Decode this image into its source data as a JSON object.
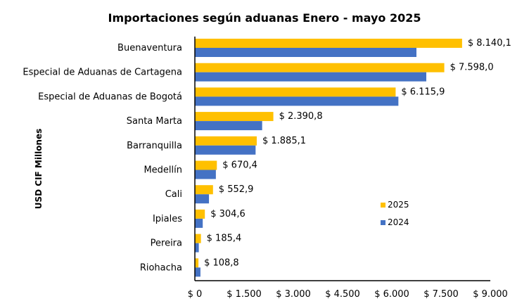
{
  "chart_data": {
    "type": "bar",
    "orientation": "horizontal",
    "title": "Importaciones según aduanas   Enero - mayo 2025",
    "ylabel": "USD CIF Millones",
    "xlim": [
      0,
      9000
    ],
    "x_ticks": [
      0,
      1500,
      3000,
      4500,
      6000,
      7500,
      9000
    ],
    "x_tick_labels": [
      "$ 0",
      "$ 1.500",
      "$ 3.000",
      "$ 4.500",
      "$ 6.000",
      "$ 7.500",
      "$ 9.000"
    ],
    "categories": [
      "Buenaventura",
      "Especial de Aduanas de Cartagena",
      "Especial de Aduanas de Bogotá",
      "Santa Marta",
      "Barranquilla",
      "Medellín",
      "Cali",
      "Ipiales",
      "Pereira",
      "Riohacha"
    ],
    "series": [
      {
        "name": "2025",
        "color": "#FFC000",
        "values": [
          8140.1,
          7598.0,
          6115.9,
          2390.8,
          1885.1,
          670.4,
          552.9,
          304.6,
          185.4,
          108.8
        ]
      },
      {
        "name": "2024",
        "color": "#4472C4",
        "values": [
          6750,
          7050,
          6200,
          2050,
          1850,
          640,
          430,
          240,
          120,
          170
        ]
      }
    ],
    "data_labels": [
      "$ 8.140,1",
      "$ 7.598,0",
      "$ 6.115,9",
      "$ 2.390,8",
      "$ 1.885,1",
      "$ 670,4",
      "$ 552,9",
      "$ 304,6",
      "$ 185,4",
      "$ 108,8"
    ],
    "legend_placement": "right",
    "grid": false
  }
}
